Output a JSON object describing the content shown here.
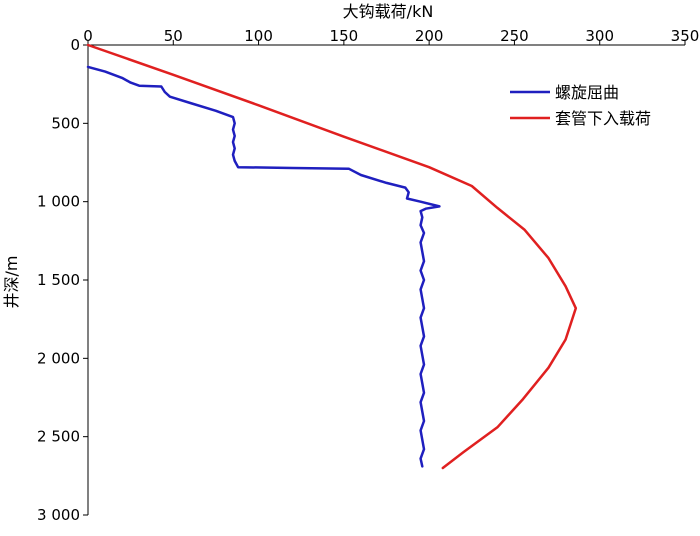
{
  "chart_data": {
    "type": "line",
    "title": "",
    "xlabel": "大钩载荷/kN",
    "ylabel": "井深/m",
    "x_axis_position": "top",
    "y_axis_inverted": true,
    "xlim": [
      0,
      350
    ],
    "ylim": [
      0,
      3000
    ],
    "x_ticks": [
      0,
      50,
      100,
      150,
      200,
      250,
      300,
      350
    ],
    "x_tick_labels": [
      "0",
      "50",
      "100",
      "150",
      "200",
      "250",
      "300",
      "350"
    ],
    "y_ticks": [
      0,
      500,
      1000,
      1500,
      2000,
      2500,
      3000
    ],
    "y_tick_labels": [
      "0",
      "500",
      "1 000",
      "1 500",
      "2 000",
      "2 500",
      "3 000"
    ],
    "grid": false,
    "legend_position": "top-right",
    "series": [
      {
        "name": "螺旋屈曲",
        "color": "#1f1fbf",
        "points": [
          [
            0,
            140
          ],
          [
            10,
            170
          ],
          [
            20,
            210
          ],
          [
            25,
            240
          ],
          [
            30,
            260
          ],
          [
            43,
            265
          ],
          [
            45,
            300
          ],
          [
            48,
            330
          ],
          [
            60,
            370
          ],
          [
            75,
            420
          ],
          [
            85,
            460
          ],
          [
            86,
            500
          ],
          [
            85,
            540
          ],
          [
            86,
            580
          ],
          [
            85,
            620
          ],
          [
            86,
            660
          ],
          [
            85,
            700
          ],
          [
            86,
            740
          ],
          [
            88,
            780
          ],
          [
            120,
            785
          ],
          [
            153,
            790
          ],
          [
            160,
            830
          ],
          [
            175,
            880
          ],
          [
            186,
            910
          ],
          [
            188,
            940
          ],
          [
            187,
            980
          ],
          [
            195,
            1000
          ],
          [
            206,
            1030
          ],
          [
            198,
            1045
          ],
          [
            195,
            1060
          ],
          [
            196,
            1100
          ],
          [
            195,
            1150
          ],
          [
            197,
            1200
          ],
          [
            195,
            1260
          ],
          [
            196,
            1320
          ],
          [
            197,
            1380
          ],
          [
            195,
            1440
          ],
          [
            197,
            1500
          ],
          [
            195,
            1560
          ],
          [
            196,
            1620
          ],
          [
            197,
            1680
          ],
          [
            195,
            1740
          ],
          [
            196,
            1800
          ],
          [
            197,
            1860
          ],
          [
            195,
            1920
          ],
          [
            196,
            1980
          ],
          [
            197,
            2040
          ],
          [
            195,
            2100
          ],
          [
            196,
            2160
          ],
          [
            197,
            2220
          ],
          [
            195,
            2280
          ],
          [
            196,
            2340
          ],
          [
            197,
            2400
          ],
          [
            195,
            2460
          ],
          [
            196,
            2520
          ],
          [
            197,
            2580
          ],
          [
            195,
            2640
          ],
          [
            196,
            2690
          ]
        ]
      },
      {
        "name": "套管下入载荷",
        "color": "#e02020",
        "points": [
          [
            0,
            0
          ],
          [
            50,
            190
          ],
          [
            100,
            385
          ],
          [
            150,
            585
          ],
          [
            200,
            780
          ],
          [
            225,
            900
          ],
          [
            240,
            1040
          ],
          [
            256,
            1180
          ],
          [
            270,
            1360
          ],
          [
            280,
            1540
          ],
          [
            286,
            1680
          ],
          [
            280,
            1880
          ],
          [
            270,
            2060
          ],
          [
            255,
            2260
          ],
          [
            240,
            2440
          ],
          [
            220,
            2600
          ],
          [
            208,
            2700
          ]
        ]
      }
    ]
  }
}
